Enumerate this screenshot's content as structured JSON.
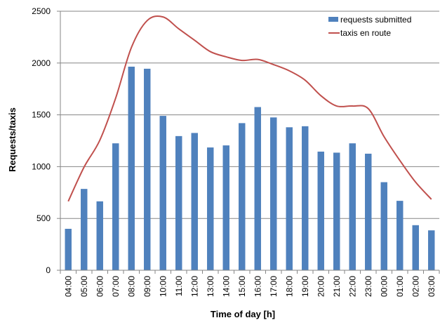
{
  "colors": {
    "bars": "#4F81BD",
    "line": "#C0504D",
    "grid": "#868686",
    "axis": "#868686"
  },
  "chart_data": {
    "type": "bar",
    "title": "",
    "xlabel": "Time of day [h]",
    "ylabel": "Requests/taxis",
    "ylim": [
      0,
      2500
    ],
    "yticks": [
      0,
      500,
      1000,
      1500,
      2000,
      2500
    ],
    "grid": "horizontal",
    "legend_position": "top-right",
    "categories": [
      "04:00",
      "05:00",
      "06:00",
      "07:00",
      "08:00",
      "09:00",
      "10:00",
      "11:00",
      "12:00",
      "13:00",
      "14:00",
      "15:00",
      "16:00",
      "17:00",
      "18:00",
      "19:00",
      "20:00",
      "21:00",
      "22:00",
      "23:00",
      "00:00",
      "01:00",
      "02:00",
      "03:00"
    ],
    "series": [
      {
        "name": "requests submitted",
        "kind": "bar",
        "values": [
          400,
          785,
          665,
          1225,
          1965,
          1945,
          1490,
          1295,
          1325,
          1185,
          1205,
          1420,
          1575,
          1475,
          1380,
          1390,
          1145,
          1135,
          1225,
          1125,
          850,
          670,
          435,
          385
        ]
      },
      {
        "name": "taxis en route",
        "kind": "line",
        "values": [
          665,
          995,
          1255,
          1660,
          2150,
          2410,
          2445,
          2330,
          2220,
          2110,
          2060,
          2025,
          2035,
          1985,
          1925,
          1835,
          1685,
          1585,
          1585,
          1560,
          1290,
          1060,
          850,
          685
        ]
      }
    ]
  }
}
